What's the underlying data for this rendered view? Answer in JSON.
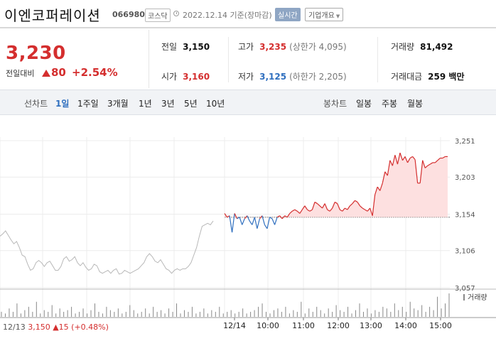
{
  "header": {
    "company": "이엔코퍼레이션",
    "code": "066980",
    "market": "코스닥",
    "date_text": "2022.12.14 기준(장마감)",
    "realtime_label": "실시간",
    "overview_label": "기업개요"
  },
  "price": {
    "current": "3,230",
    "change_label": "전일대비",
    "change_value": "80",
    "change_pct": "+2.54%",
    "direction": "up"
  },
  "stats": {
    "prev_close": {
      "label": "전일",
      "value": "3,150"
    },
    "high": {
      "label": "고가",
      "value": "3,235",
      "sub": "(상한가 4,095)"
    },
    "volume": {
      "label": "거래량",
      "value": "81,492"
    },
    "open": {
      "label": "시가",
      "value": "3,160"
    },
    "low": {
      "label": "저가",
      "value": "3,125",
      "sub": "(하한가 2,205)"
    },
    "amount": {
      "label": "거래대금",
      "value": "259 백만"
    }
  },
  "tabs": {
    "line_label": "선차트",
    "line_items": [
      "1일",
      "1주일",
      "3개월",
      "1년",
      "3년",
      "5년",
      "10년"
    ],
    "active_line": "1일",
    "candle_label": "봉차트",
    "candle_items": [
      "일봉",
      "주봉",
      "월봉"
    ]
  },
  "prev_day_info": {
    "date": "12/13",
    "price": "3,150",
    "change": "▲15",
    "pct": "(+0.48%)"
  },
  "chart_data": {
    "type": "line",
    "title": "",
    "y_ticks": [
      "3,251",
      "3,203",
      "3,154",
      "3,106",
      "3,057"
    ],
    "ylim": [
      3040,
      3265
    ],
    "baseline": 3150,
    "x_ticks": [
      "12/14",
      "10:00",
      "11:00",
      "12:00",
      "13:00",
      "14:00",
      "15:00"
    ],
    "volume_legend": "거래량",
    "colors": {
      "up": "#d42e2e",
      "down": "#2f6fbf",
      "prev": "#b8b8b8",
      "fill": "#fde0e0"
    },
    "prev_day_series": [
      3125,
      3128,
      3132,
      3126,
      3120,
      3115,
      3118,
      3110,
      3100,
      3098,
      3088,
      3080,
      3082,
      3090,
      3093,
      3090,
      3085,
      3090,
      3092,
      3086,
      3080,
      3080,
      3085,
      3095,
      3098,
      3092,
      3094,
      3098,
      3090,
      3086,
      3090,
      3084,
      3080,
      3082,
      3088,
      3086,
      3078,
      3076,
      3078,
      3080,
      3076,
      3080,
      3082,
      3075,
      3076,
      3080,
      3078,
      3076,
      3078,
      3080,
      3082,
      3086,
      3090,
      3098,
      3102,
      3098,
      3092,
      3090,
      3094,
      3088,
      3082,
      3080,
      3076,
      3080,
      3082,
      3080,
      3082,
      3082,
      3085,
      3090,
      3100,
      3110,
      3125,
      3138,
      3140,
      3142,
      3140,
      3145
    ],
    "today_series": [
      3155,
      3150,
      3152,
      3130,
      3155,
      3148,
      3150,
      3140,
      3148,
      3152,
      3145,
      3140,
      3150,
      3135,
      3148,
      3152,
      3140,
      3135,
      3150,
      3148,
      3140,
      3150,
      3152,
      3148,
      3152,
      3150,
      3155,
      3158,
      3160,
      3158,
      3155,
      3160,
      3165,
      3160,
      3158,
      3160,
      3170,
      3168,
      3165,
      3162,
      3168,
      3160,
      3158,
      3162,
      3170,
      3168,
      3160,
      3158,
      3162,
      3160,
      3165,
      3168,
      3172,
      3170,
      3165,
      3162,
      3160,
      3158,
      3162,
      3152,
      3180,
      3190,
      3185,
      3195,
      3210,
      3205,
      3225,
      3218,
      3232,
      3220,
      3235,
      3225,
      3230,
      3222,
      3228,
      3230,
      3226,
      3195,
      3195,
      3225,
      3215,
      3218,
      3220,
      3222,
      3222,
      3225,
      3228,
      3228,
      3230,
      3230
    ],
    "volume_series": [
      3,
      2,
      5,
      3,
      8,
      2,
      4,
      6,
      3,
      9,
      2,
      4,
      3,
      7,
      2,
      5,
      3,
      4,
      6,
      2,
      3,
      5,
      2,
      4,
      8,
      3,
      2,
      6,
      4,
      3,
      5,
      2,
      3,
      7,
      4,
      2,
      3,
      5,
      2,
      6,
      3,
      4,
      2,
      5,
      3,
      8,
      2,
      4,
      3,
      6,
      2,
      3,
      5,
      2,
      4,
      3,
      6,
      2,
      3,
      4,
      2,
      3,
      5,
      2,
      3,
      4,
      6,
      8,
      3,
      2,
      4,
      5,
      3,
      6,
      2,
      4,
      3,
      9,
      2,
      5,
      3,
      6,
      4,
      2,
      5,
      3,
      7,
      4,
      3,
      6,
      2,
      4,
      8,
      3,
      5,
      2,
      4,
      3,
      6,
      5,
      3,
      8,
      4,
      6,
      3,
      9,
      5,
      4,
      7,
      3,
      6,
      4,
      12,
      5,
      8,
      14
    ]
  }
}
